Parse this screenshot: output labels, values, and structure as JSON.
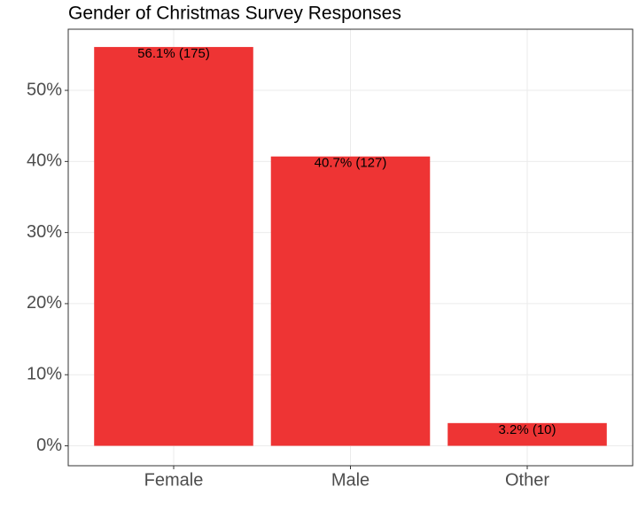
{
  "chart_data": {
    "type": "bar",
    "title": "Gender of Christmas Survey Responses",
    "categories": [
      "Female",
      "Male",
      "Other"
    ],
    "values": [
      56.1,
      40.7,
      3.2
    ],
    "value_labels": [
      "56.1% (175)",
      "40.7% (127)",
      "3.2% (10)"
    ],
    "color": "#ee3434",
    "ylim": [
      -2.8,
      58.6
    ],
    "yticks": [
      {
        "value": 0,
        "label": "0%"
      },
      {
        "value": 10,
        "label": "10%"
      },
      {
        "value": 20,
        "label": "20%"
      },
      {
        "value": 30,
        "label": "30%"
      },
      {
        "value": 40,
        "label": "40%"
      },
      {
        "value": 50,
        "label": "50%"
      }
    ],
    "grid": true
  }
}
